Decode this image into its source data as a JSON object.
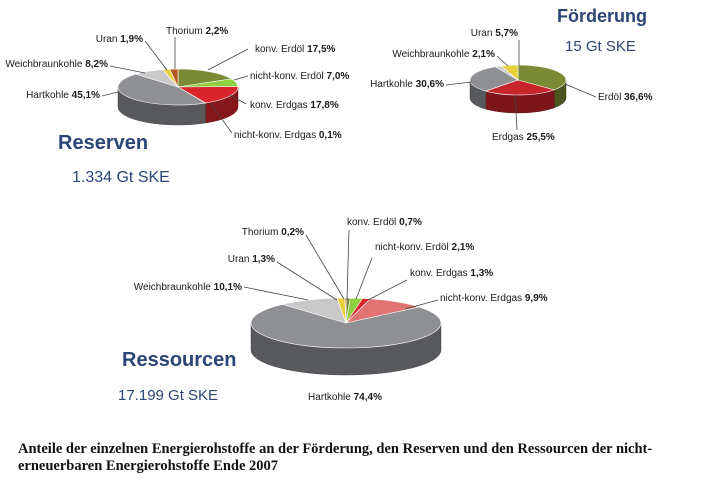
{
  "caption": "Anteile der einzelnen Energierohstoffe an der Förderung, den Reserven und den Ressourcen der nicht-erneuerbaren Energierohstoffe Ende 2007",
  "colors": {
    "Hartkohle": "#8e9094",
    "Weichbraunkohle": "#c9c9c9",
    "Uran": "#e8cf3c",
    "Thorium": "#b45a20",
    "konv. Erdöl": "#7b8b35",
    "nicht-konv. Erdöl": "#8dcf3e",
    "konv. Erdgas": "#d9242a",
    "nicht-konv. Erdgas": "#e17473",
    "title": "#2b4576"
  },
  "chart_data": [
    {
      "type": "pie",
      "title": "Reserven",
      "subtitle": "1.334 Gt SKE",
      "slices": [
        {
          "label": "konv. Erdöl",
          "value": 17.5,
          "display": "17,5%"
        },
        {
          "label": "nicht-konv. Erdöl",
          "value": 7.0,
          "display": "7,0%"
        },
        {
          "label": "konv. Erdgas",
          "value": 17.8,
          "display": "17,8%"
        },
        {
          "label": "nicht-konv. Erdgas",
          "value": 0.1,
          "display": "0,1%"
        },
        {
          "label": "Hartkohle",
          "value": 45.1,
          "display": "45,1%"
        },
        {
          "label": "Weichbraunkohle",
          "value": 8.2,
          "display": "8,2%"
        },
        {
          "label": "Uran",
          "value": 1.9,
          "display": "1,9%"
        },
        {
          "label": "Thorium",
          "value": 2.2,
          "display": "2,2%"
        }
      ]
    },
    {
      "type": "pie",
      "title": "Förderung",
      "subtitle": "15 Gt SKE",
      "slices": [
        {
          "label": "Erdöl",
          "value": 36.6,
          "display": "36,6%"
        },
        {
          "label": "Erdgas",
          "value": 25.5,
          "display": "25,5%"
        },
        {
          "label": "Hartkohle",
          "value": 30.6,
          "display": "30,6%"
        },
        {
          "label": "Weichbraunkohle",
          "value": 2.1,
          "display": "2,1%"
        },
        {
          "label": "Uran",
          "value": 5.7,
          "display": "5,7%"
        }
      ]
    },
    {
      "type": "pie",
      "title": "Ressourcen",
      "subtitle": "17.199 Gt SKE",
      "slices": [
        {
          "label": "konv. Erdöl",
          "value": 0.7,
          "display": "0,7%"
        },
        {
          "label": "nicht-konv. Erdöl",
          "value": 2.1,
          "display": "2,1%"
        },
        {
          "label": "konv. Erdgas",
          "value": 1.3,
          "display": "1,3%"
        },
        {
          "label": "nicht-konv. Erdgas",
          "value": 9.9,
          "display": "9,9%"
        },
        {
          "label": "Hartkohle",
          "value": 74.4,
          "display": "74,4%"
        },
        {
          "label": "Weichbraunkohle",
          "value": 10.1,
          "display": "10,1%"
        },
        {
          "label": "Uran",
          "value": 1.3,
          "display": "1,3%"
        },
        {
          "label": "Thorium",
          "value": 0.2,
          "display": "0,2%"
        }
      ]
    }
  ]
}
